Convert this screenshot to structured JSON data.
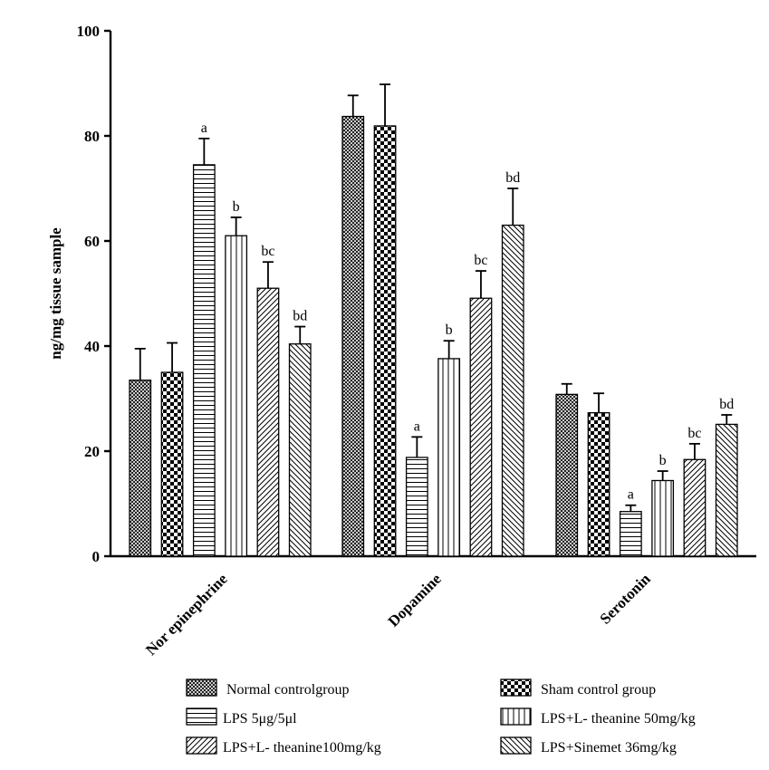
{
  "chart_data": {
    "type": "bar",
    "title": "",
    "xlabel": "",
    "ylabel": "ng/mg tissue sample",
    "ylim": [
      0,
      100
    ],
    "yticks": [
      0,
      20,
      40,
      60,
      80,
      100
    ],
    "grid": false,
    "legend_position": "bottom",
    "categories": [
      "Nor epinephrine",
      "Dopamine",
      "Serotonin"
    ],
    "series": [
      {
        "name": "Normal controlgroup",
        "pattern": "fine-crosshatch",
        "values": [
          33.5,
          83.7,
          30.8
        ],
        "errors": [
          6.0,
          4.0,
          2.0
        ],
        "labels": [
          "",
          "",
          ""
        ]
      },
      {
        "name": "Sham control group",
        "pattern": "checkerboard",
        "values": [
          35.0,
          81.9,
          27.3
        ],
        "errors": [
          5.6,
          7.9,
          3.7
        ],
        "labels": [
          "",
          "",
          ""
        ]
      },
      {
        "name": "LPS 5μg/5μl",
        "pattern": "horizontal-lines",
        "values": [
          74.5,
          18.8,
          8.5
        ],
        "errors": [
          5.0,
          3.9,
          1.2
        ],
        "labels": [
          "a",
          "a",
          "a"
        ]
      },
      {
        "name": "LPS+L- theanine 50mg/kg",
        "pattern": "vertical-lines",
        "values": [
          61.0,
          37.6,
          14.4
        ],
        "errors": [
          3.5,
          3.4,
          1.8
        ],
        "labels": [
          "b",
          "b",
          "b"
        ]
      },
      {
        "name": "LPS+L- theanine100mg/kg",
        "pattern": "diagonal-forward",
        "values": [
          51.0,
          49.1,
          18.4
        ],
        "errors": [
          5.0,
          5.2,
          3.0
        ],
        "labels": [
          "bc",
          "bc",
          "bc"
        ]
      },
      {
        "name": "LPS+Sinemet 36mg/kg",
        "pattern": "diagonal-back",
        "values": [
          40.4,
          63.0,
          25.1
        ],
        "errors": [
          3.3,
          7.0,
          1.8
        ],
        "labels": [
          "bd",
          "bd",
          "bd"
        ]
      }
    ]
  }
}
